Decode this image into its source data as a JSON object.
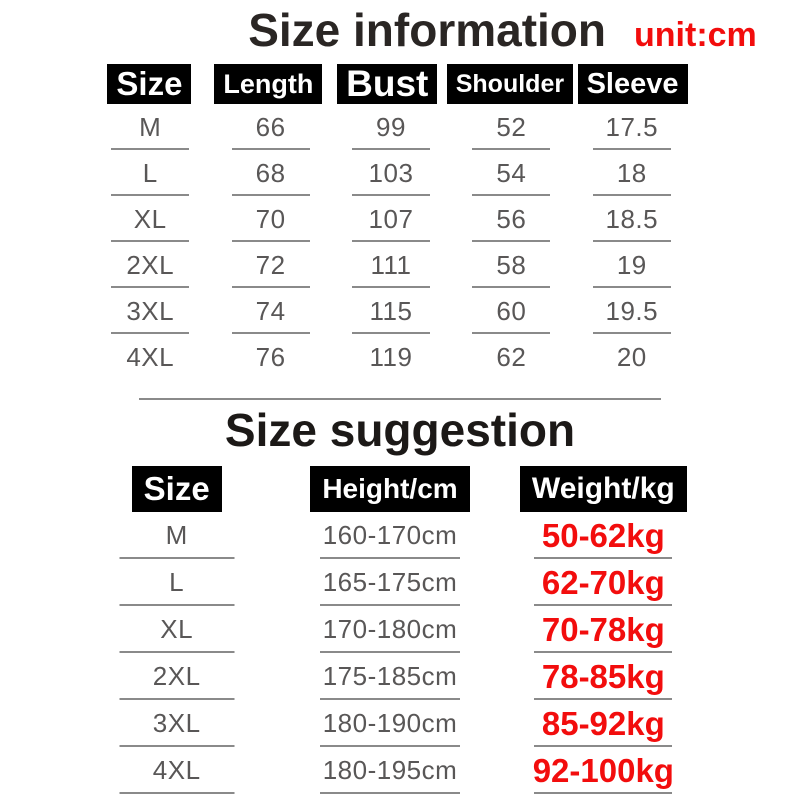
{
  "page": {
    "title": "Size information",
    "unit_label": "unit:cm",
    "suggestion_title": "Size suggestion"
  },
  "colors": {
    "accent_red": "#f20d0d",
    "header_bg": "#000000",
    "header_text": "#ffffff",
    "body_text": "#595757",
    "line_gray": "#8a8a8a"
  },
  "chart_data": [
    {
      "type": "table",
      "title": "Size information",
      "unit": "unit:cm",
      "columns": [
        "Size",
        "Length",
        "Bust",
        "Shoulder",
        "Sleeve"
      ],
      "rows": [
        [
          "M",
          "66",
          "99",
          "52",
          "17.5"
        ],
        [
          "L",
          "68",
          "103",
          "54",
          "18"
        ],
        [
          "XL",
          "70",
          "107",
          "56",
          "18.5"
        ],
        [
          "2XL",
          "72",
          "111",
          "58",
          "19"
        ],
        [
          "3XL",
          "74",
          "115",
          "60",
          "19.5"
        ],
        [
          "4XL",
          "76",
          "119",
          "62",
          "20"
        ]
      ]
    },
    {
      "type": "table",
      "title": "Size suggestion",
      "columns": [
        "Size",
        "Height/cm",
        "Weight/kg"
      ],
      "rows": [
        [
          "M",
          "160-170cm",
          "50-62kg"
        ],
        [
          "L",
          "165-175cm",
          "62-70kg"
        ],
        [
          "XL",
          "170-180cm",
          "70-78kg"
        ],
        [
          "2XL",
          "175-185cm",
          "78-85kg"
        ],
        [
          "3XL",
          "180-190cm",
          "85-92kg"
        ],
        [
          "4XL",
          "180-195cm",
          "92-100kg"
        ]
      ]
    }
  ]
}
